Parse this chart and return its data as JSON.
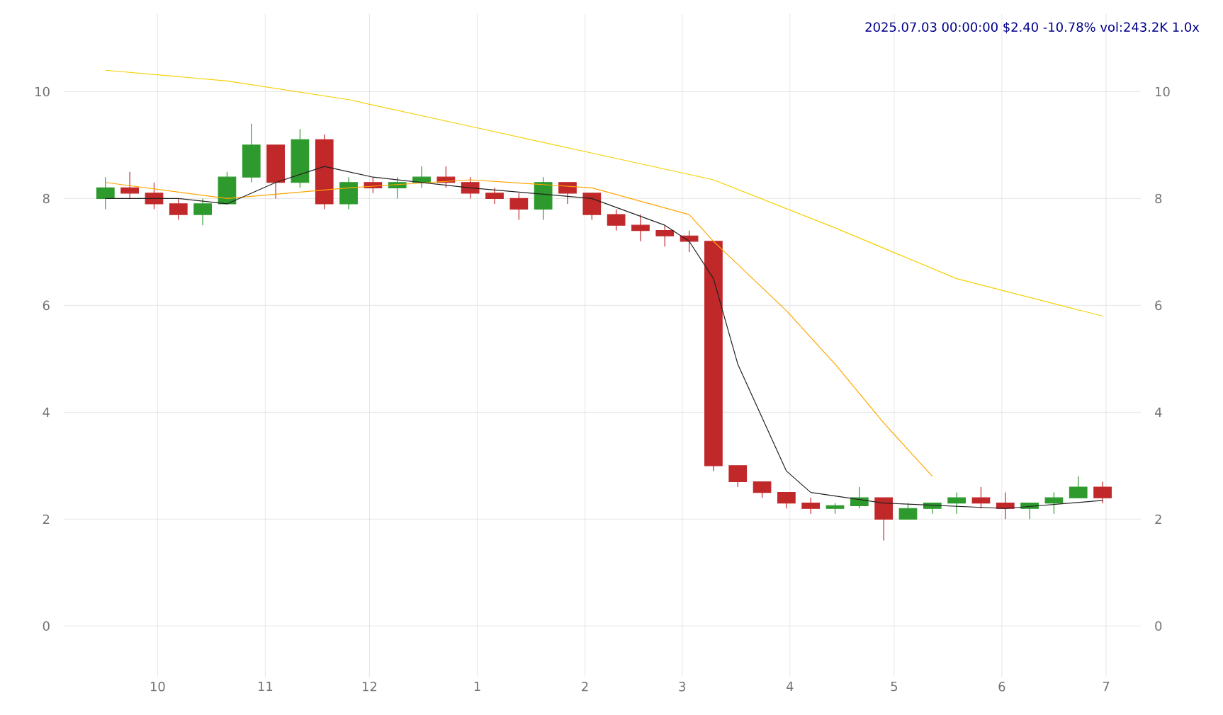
{
  "chart_data": {
    "type": "candlestick",
    "title": "2025.07.03 00:00:00 $2.40 -10.78% vol:243.2K 1.0x",
    "x": [
      "2024-09-16",
      "2024-09-23",
      "2024-09-30",
      "2024-10-07",
      "2024-10-14",
      "2024-10-21",
      "2024-10-28",
      "2024-11-04",
      "2024-11-11",
      "2024-11-18",
      "2024-11-25",
      "2024-12-02",
      "2024-12-09",
      "2024-12-16",
      "2024-12-23",
      "2024-12-30",
      "2025-01-06",
      "2025-01-13",
      "2025-01-20",
      "2025-01-27",
      "2025-02-03",
      "2025-02-10",
      "2025-02-17",
      "2025-02-24",
      "2025-03-03",
      "2025-03-10",
      "2025-03-17",
      "2025-03-24",
      "2025-03-31",
      "2025-04-07",
      "2025-04-14",
      "2025-04-21",
      "2025-04-28",
      "2025-05-05",
      "2025-05-12",
      "2025-05-19",
      "2025-05-26",
      "2025-06-02",
      "2025-06-09",
      "2025-06-16",
      "2025-06-23",
      "2025-06-30"
    ],
    "ohlc": [
      [
        8.0,
        8.4,
        7.8,
        8.2
      ],
      [
        8.2,
        8.5,
        8.0,
        8.1
      ],
      [
        8.1,
        8.3,
        7.8,
        7.9
      ],
      [
        7.9,
        8.0,
        7.6,
        7.7
      ],
      [
        7.7,
        8.0,
        7.5,
        7.9
      ],
      [
        7.9,
        8.5,
        7.9,
        8.4
      ],
      [
        8.4,
        9.4,
        8.3,
        9.0
      ],
      [
        9.0,
        9.0,
        8.0,
        8.3
      ],
      [
        8.3,
        9.3,
        8.2,
        9.1
      ],
      [
        9.1,
        9.2,
        7.8,
        7.9
      ],
      [
        7.9,
        8.4,
        7.8,
        8.3
      ],
      [
        8.3,
        8.4,
        8.1,
        8.2
      ],
      [
        8.2,
        8.4,
        8.0,
        8.3
      ],
      [
        8.3,
        8.6,
        8.2,
        8.4
      ],
      [
        8.4,
        8.6,
        8.2,
        8.3
      ],
      [
        8.3,
        8.4,
        8.0,
        8.1
      ],
      [
        8.1,
        8.2,
        7.9,
        8.0
      ],
      [
        8.0,
        8.1,
        7.6,
        7.8
      ],
      [
        7.8,
        8.4,
        7.6,
        8.3
      ],
      [
        8.3,
        8.3,
        7.9,
        8.1
      ],
      [
        8.1,
        8.1,
        7.6,
        7.7
      ],
      [
        7.7,
        7.8,
        7.4,
        7.5
      ],
      [
        7.5,
        7.7,
        7.2,
        7.4
      ],
      [
        7.4,
        7.5,
        7.1,
        7.3
      ],
      [
        7.3,
        7.4,
        7.0,
        7.2
      ],
      [
        7.2,
        7.2,
        2.9,
        3.0
      ],
      [
        3.0,
        3.0,
        2.6,
        2.7
      ],
      [
        2.7,
        2.7,
        2.4,
        2.5
      ],
      [
        2.5,
        2.5,
        2.2,
        2.3
      ],
      [
        2.3,
        2.4,
        2.1,
        2.2
      ],
      [
        2.2,
        2.3,
        2.1,
        2.25
      ],
      [
        2.25,
        2.6,
        2.2,
        2.4
      ],
      [
        2.4,
        2.4,
        1.6,
        2.0
      ],
      [
        2.0,
        2.3,
        2.0,
        2.2
      ],
      [
        2.2,
        2.3,
        2.1,
        2.3
      ],
      [
        2.3,
        2.5,
        2.1,
        2.4
      ],
      [
        2.4,
        2.6,
        2.2,
        2.3
      ],
      [
        2.3,
        2.5,
        2.0,
        2.2
      ],
      [
        2.2,
        2.3,
        2.0,
        2.3
      ],
      [
        2.3,
        2.5,
        2.1,
        2.4
      ],
      [
        2.4,
        2.8,
        2.4,
        2.6
      ],
      [
        2.6,
        2.7,
        2.3,
        2.4
      ]
    ],
    "series": [
      {
        "type": "line",
        "color": "#f5d000",
        "x": [
          "2024-09-16",
          "2024-10-21",
          "2024-11-25",
          "2024-12-30",
          "2025-02-03",
          "2025-03-10",
          "2025-04-14",
          "2025-05-19",
          "2025-06-30"
        ],
        "values": [
          10.4,
          10.2,
          9.85,
          9.35,
          8.85,
          8.35,
          7.45,
          6.5,
          5.8
        ]
      },
      {
        "type": "line",
        "color": "#ffa500",
        "x": [
          "2024-09-16",
          "2024-10-21",
          "2024-11-25",
          "2024-12-30",
          "2025-02-03",
          "2025-03-03",
          "2025-03-10",
          "2025-03-31",
          "2025-04-14",
          "2025-04-28",
          "2025-05-12"
        ],
        "values": [
          8.3,
          8.0,
          8.2,
          8.35,
          8.2,
          7.7,
          7.2,
          5.9,
          4.9,
          3.8,
          2.8
        ]
      },
      {
        "type": "line",
        "color": "#222222",
        "x": [
          "2024-09-16",
          "2024-10-07",
          "2024-10-21",
          "2024-11-04",
          "2024-11-18",
          "2024-12-02",
          "2024-12-30",
          "2025-02-03",
          "2025-02-24",
          "2025-03-03",
          "2025-03-10",
          "2025-03-17",
          "2025-03-31",
          "2025-04-07",
          "2025-04-28",
          "2025-06-02",
          "2025-06-30"
        ],
        "values": [
          8.0,
          8.0,
          7.9,
          8.3,
          8.6,
          8.4,
          8.2,
          8.0,
          7.5,
          7.2,
          6.5,
          4.9,
          2.9,
          2.5,
          2.3,
          2.2,
          2.35
        ]
      }
    ],
    "xlim": [
      "2024-09-04",
      "2025-07-11"
    ],
    "xticks": [
      {
        "value": "2024-10-01",
        "label": "10"
      },
      {
        "value": "2024-11-01",
        "label": "11"
      },
      {
        "value": "2024-12-01",
        "label": "12"
      },
      {
        "value": "2025-01-01",
        "label": "1"
      },
      {
        "value": "2025-02-01",
        "label": "2"
      },
      {
        "value": "2025-03-01",
        "label": "3"
      },
      {
        "value": "2025-04-01",
        "label": "4"
      },
      {
        "value": "2025-05-01",
        "label": "5"
      },
      {
        "value": "2025-06-01",
        "label": "6"
      },
      {
        "value": "2025-07-01",
        "label": "7"
      }
    ],
    "ylim": [
      -0.95,
      11.45
    ],
    "yticks": [
      0,
      2,
      4,
      6,
      8,
      10
    ],
    "y2lim": [
      -0.95,
      11.45
    ],
    "y2ticks": [
      0,
      2,
      4,
      6,
      8,
      10
    ],
    "grid": true,
    "marker": "none",
    "line_style": "solid"
  }
}
